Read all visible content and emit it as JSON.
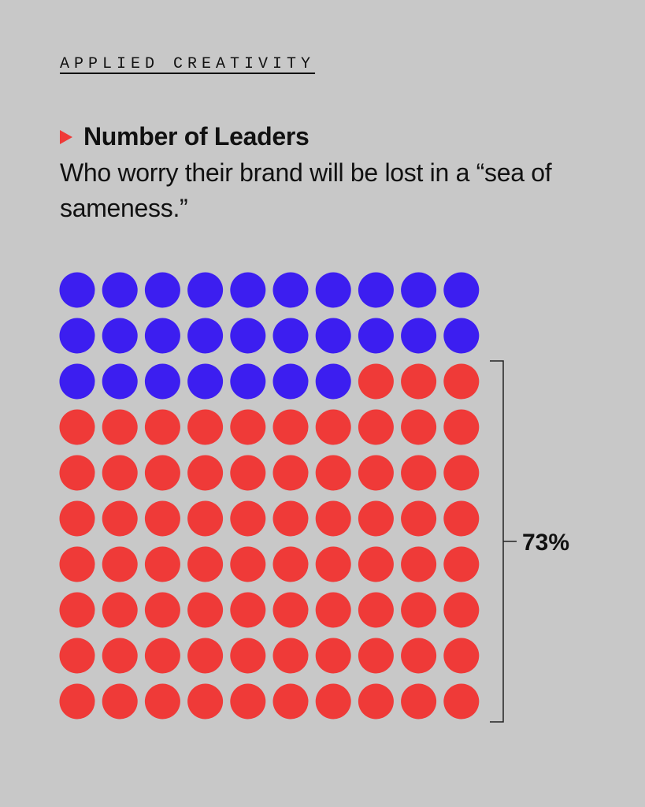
{
  "brand": "APPLIED CREATIVITY",
  "chart_data": {
    "type": "waffle",
    "title": "Number of Leaders",
    "subtitle": "Who worry their brand will be lost in a “sea of sameness.”",
    "total": 100,
    "grid": {
      "rows": 10,
      "columns": 10
    },
    "highlighted_percent": 73,
    "annotation": "73%",
    "colors": {
      "other": "#3c1ef0",
      "highlighted": "#ef3a38",
      "background": "#c8c8c8"
    }
  }
}
